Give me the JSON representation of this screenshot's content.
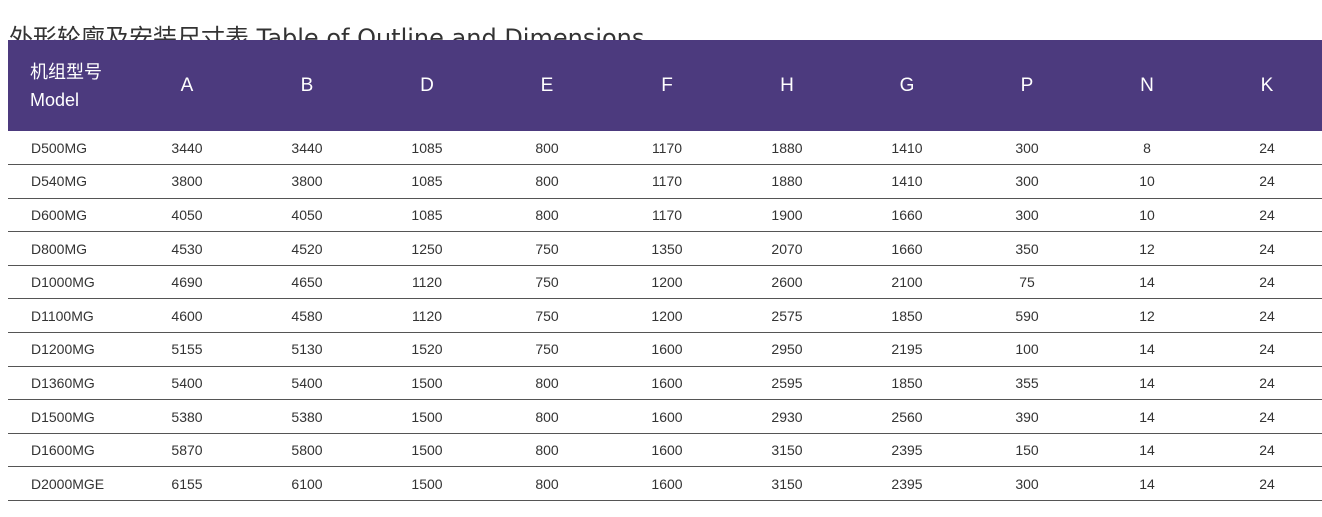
{
  "title": "外形轮廓及安装尺寸表 Table of Outline and Dimensions",
  "header": {
    "model_cn": "机组型号",
    "model_en": "Model",
    "columns": [
      "A",
      "B",
      "D",
      "E",
      "F",
      "H",
      "G",
      "P",
      "N",
      "K"
    ]
  },
  "rows": [
    {
      "model": "D500MG",
      "values": [
        "3440",
        "3440",
        "1085",
        "800",
        "1170",
        "1880",
        "1410",
        "300",
        "8",
        "24"
      ]
    },
    {
      "model": "D540MG",
      "values": [
        "3800",
        "3800",
        "1085",
        "800",
        "1170",
        "1880",
        "1410",
        "300",
        "10",
        "24"
      ]
    },
    {
      "model": "D600MG",
      "values": [
        "4050",
        "4050",
        "1085",
        "800",
        "1170",
        "1900",
        "1660",
        "300",
        "10",
        "24"
      ]
    },
    {
      "model": "D800MG",
      "values": [
        "4530",
        "4520",
        "1250",
        "750",
        "1350",
        "2070",
        "1660",
        "350",
        "12",
        "24"
      ]
    },
    {
      "model": "D1000MG",
      "values": [
        "4690",
        "4650",
        "1120",
        "750",
        "1200",
        "2600",
        "2100",
        "75",
        "14",
        "24"
      ]
    },
    {
      "model": "D1100MG",
      "values": [
        "4600",
        "4580",
        "1120",
        "750",
        "1200",
        "2575",
        "1850",
        "590",
        "12",
        "24"
      ]
    },
    {
      "model": "D1200MG",
      "values": [
        "5155",
        "5130",
        "1520",
        "750",
        "1600",
        "2950",
        "2195",
        "100",
        "14",
        "24"
      ]
    },
    {
      "model": "D1360MG",
      "values": [
        "5400",
        "5400",
        "1500",
        "800",
        "1600",
        "2595",
        "1850",
        "355",
        "14",
        "24"
      ]
    },
    {
      "model": "D1500MG",
      "values": [
        "5380",
        "5380",
        "1500",
        "800",
        "1600",
        "2930",
        "2560",
        "390",
        "14",
        "24"
      ]
    },
    {
      "model": "D1600MG",
      "values": [
        "5870",
        "5800",
        "1500",
        "800",
        "1600",
        "3150",
        "2395",
        "150",
        "14",
        "24"
      ]
    },
    {
      "model": "D2000MGE",
      "values": [
        "6155",
        "6100",
        "1500",
        "800",
        "1600",
        "3150",
        "2395",
        "300",
        "14",
        "24"
      ]
    }
  ],
  "colors": {
    "header_bg": "#4c3a7e",
    "header_text": "#ffffff",
    "body_text": "#333333",
    "row_divider": "#555555"
  }
}
